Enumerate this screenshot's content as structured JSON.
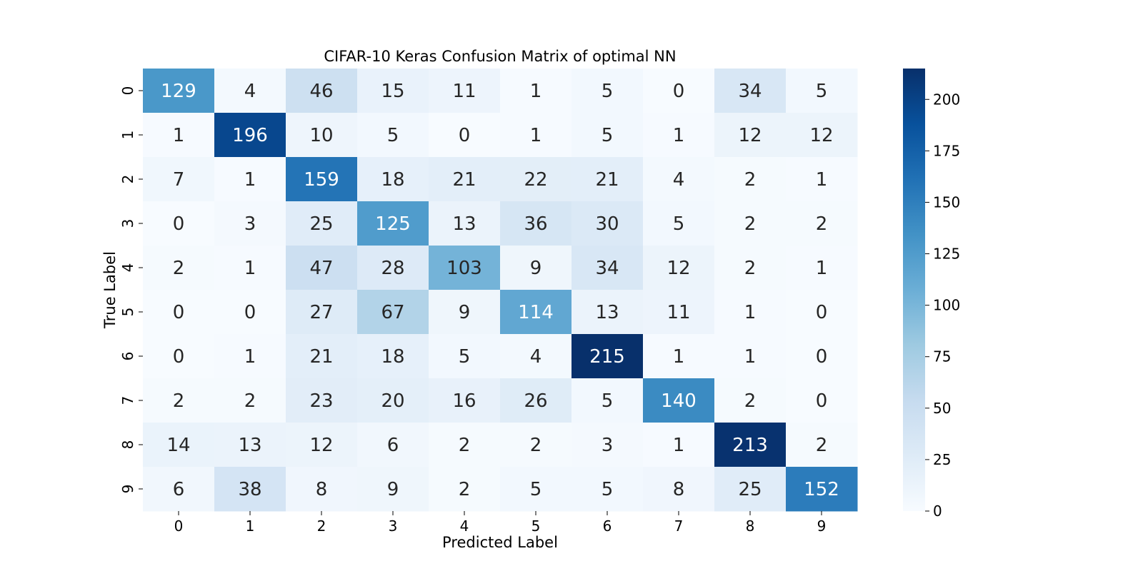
{
  "chart_data": {
    "type": "heatmap",
    "title": "CIFAR-10 Keras Confusion Matrix of optimal NN",
    "xlabel": "Predicted Label",
    "ylabel": "True Label",
    "x_categories": [
      "0",
      "1",
      "2",
      "3",
      "4",
      "5",
      "6",
      "7",
      "8",
      "9"
    ],
    "y_categories": [
      "0",
      "1",
      "2",
      "3",
      "4",
      "5",
      "6",
      "7",
      "8",
      "9"
    ],
    "values": [
      [
        129,
        4,
        46,
        15,
        11,
        1,
        5,
        0,
        34,
        5
      ],
      [
        1,
        196,
        10,
        5,
        0,
        1,
        5,
        1,
        12,
        12
      ],
      [
        7,
        1,
        159,
        18,
        21,
        22,
        21,
        4,
        2,
        1
      ],
      [
        0,
        3,
        25,
        125,
        13,
        36,
        30,
        5,
        2,
        2
      ],
      [
        2,
        1,
        47,
        28,
        103,
        9,
        34,
        12,
        2,
        1
      ],
      [
        0,
        0,
        27,
        67,
        9,
        114,
        13,
        11,
        1,
        0
      ],
      [
        0,
        1,
        21,
        18,
        5,
        4,
        215,
        1,
        1,
        0
      ],
      [
        2,
        2,
        23,
        20,
        16,
        26,
        5,
        140,
        2,
        0
      ],
      [
        14,
        13,
        12,
        6,
        2,
        2,
        3,
        1,
        213,
        2
      ],
      [
        6,
        38,
        8,
        9,
        2,
        5,
        5,
        8,
        25,
        152
      ]
    ],
    "colormap": "Blues",
    "colorbar": {
      "range": [
        0,
        215
      ],
      "ticks": [
        0,
        25,
        50,
        75,
        100,
        125,
        150,
        175,
        200
      ],
      "tick_labels": [
        "0",
        "25",
        "50",
        "75",
        "100",
        "125",
        "150",
        "175",
        "200"
      ]
    },
    "annotations": true,
    "colors": {
      "low": "#f7fbff",
      "high": "#08306b",
      "dark_text": "#262626",
      "light_text": "#ffffff"
    }
  }
}
